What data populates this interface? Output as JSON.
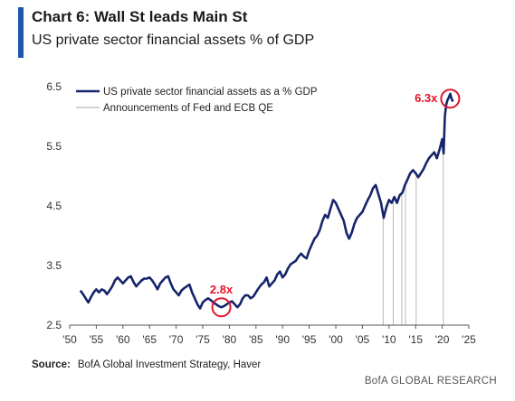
{
  "header": {
    "title": "Chart 6: Wall St leads Main St",
    "subtitle": "US private sector financial assets % of GDP"
  },
  "footer": {
    "source_label": "Source:",
    "source_text": "BofA Global Investment Strategy, Haver",
    "brand": "BofA GLOBAL RESEARCH"
  },
  "colors": {
    "accent": "#1f57a6",
    "series": "#16256b",
    "qe_lines": "#b9b9b9",
    "annotation": "#e3152c",
    "axis": "#555555"
  },
  "chart_data": {
    "type": "line",
    "title": "",
    "xlabel": "",
    "ylabel": "",
    "xlim": [
      1950,
      2025
    ],
    "ylim": [
      2.5,
      6.5
    ],
    "x_ticks": [
      1950,
      1955,
      1960,
      1965,
      1970,
      1975,
      1980,
      1985,
      1990,
      1995,
      2000,
      2005,
      2010,
      2015,
      2020,
      2025
    ],
    "x_tick_labels": [
      "'50",
      "'55",
      "'60",
      "'65",
      "'70",
      "'75",
      "'80",
      "'85",
      "'90",
      "'95",
      "'00",
      "'05",
      "'10",
      "'15",
      "'20",
      "'25"
    ],
    "y_ticks": [
      2.5,
      3.5,
      4.5,
      5.5,
      6.5
    ],
    "y_tick_labels": [
      "2.5",
      "3.5",
      "4.5",
      "5.5",
      "6.5"
    ],
    "grid": false,
    "legend_position": "top-left",
    "legend": [
      {
        "label": "US private sector financial assets as a % GDP",
        "style": "series"
      },
      {
        "label": "Announcements of Fed and ECB QE",
        "style": "qe"
      }
    ],
    "series": [
      {
        "name": "US private sector financial assets as a % GDP",
        "points": [
          [
            1952.0,
            3.08
          ],
          [
            1952.5,
            3.02
          ],
          [
            1953.0,
            2.95
          ],
          [
            1953.5,
            2.88
          ],
          [
            1954.0,
            2.97
          ],
          [
            1954.5,
            3.05
          ],
          [
            1955.0,
            3.1
          ],
          [
            1955.5,
            3.05
          ],
          [
            1956.0,
            3.1
          ],
          [
            1956.5,
            3.08
          ],
          [
            1957.0,
            3.02
          ],
          [
            1957.5,
            3.08
          ],
          [
            1958.0,
            3.15
          ],
          [
            1958.5,
            3.25
          ],
          [
            1959.0,
            3.3
          ],
          [
            1959.5,
            3.25
          ],
          [
            1960.0,
            3.2
          ],
          [
            1960.5,
            3.25
          ],
          [
            1961.0,
            3.3
          ],
          [
            1961.5,
            3.32
          ],
          [
            1962.0,
            3.22
          ],
          [
            1962.5,
            3.15
          ],
          [
            1963.0,
            3.2
          ],
          [
            1963.5,
            3.25
          ],
          [
            1964.0,
            3.28
          ],
          [
            1964.5,
            3.28
          ],
          [
            1965.0,
            3.3
          ],
          [
            1965.5,
            3.25
          ],
          [
            1966.0,
            3.18
          ],
          [
            1966.5,
            3.1
          ],
          [
            1967.0,
            3.2
          ],
          [
            1967.5,
            3.25
          ],
          [
            1968.0,
            3.3
          ],
          [
            1968.5,
            3.32
          ],
          [
            1969.0,
            3.2
          ],
          [
            1969.5,
            3.1
          ],
          [
            1970.0,
            3.05
          ],
          [
            1970.5,
            3.0
          ],
          [
            1971.0,
            3.08
          ],
          [
            1971.5,
            3.12
          ],
          [
            1972.0,
            3.15
          ],
          [
            1972.5,
            3.18
          ],
          [
            1973.0,
            3.05
          ],
          [
            1973.5,
            2.95
          ],
          [
            1974.0,
            2.85
          ],
          [
            1974.5,
            2.78
          ],
          [
            1975.0,
            2.88
          ],
          [
            1975.5,
            2.92
          ],
          [
            1976.0,
            2.95
          ],
          [
            1976.5,
            2.92
          ],
          [
            1977.0,
            2.88
          ],
          [
            1977.5,
            2.85
          ],
          [
            1978.0,
            2.82
          ],
          [
            1978.5,
            2.8
          ],
          [
            1979.0,
            2.82
          ],
          [
            1979.5,
            2.85
          ],
          [
            1980.0,
            2.88
          ],
          [
            1980.5,
            2.9
          ],
          [
            1981.0,
            2.85
          ],
          [
            1981.5,
            2.8
          ],
          [
            1982.0,
            2.85
          ],
          [
            1982.5,
            2.95
          ],
          [
            1983.0,
            3.0
          ],
          [
            1983.5,
            3.0
          ],
          [
            1984.0,
            2.95
          ],
          [
            1984.5,
            2.98
          ],
          [
            1985.0,
            3.05
          ],
          [
            1985.5,
            3.12
          ],
          [
            1986.0,
            3.18
          ],
          [
            1986.5,
            3.22
          ],
          [
            1987.0,
            3.3
          ],
          [
            1987.5,
            3.15
          ],
          [
            1988.0,
            3.2
          ],
          [
            1988.5,
            3.25
          ],
          [
            1989.0,
            3.35
          ],
          [
            1989.5,
            3.4
          ],
          [
            1990.0,
            3.3
          ],
          [
            1990.5,
            3.35
          ],
          [
            1991.0,
            3.45
          ],
          [
            1991.5,
            3.52
          ],
          [
            1992.0,
            3.55
          ],
          [
            1992.5,
            3.58
          ],
          [
            1993.0,
            3.65
          ],
          [
            1993.5,
            3.7
          ],
          [
            1994.0,
            3.65
          ],
          [
            1994.5,
            3.62
          ],
          [
            1995.0,
            3.75
          ],
          [
            1995.5,
            3.85
          ],
          [
            1996.0,
            3.95
          ],
          [
            1996.5,
            4.0
          ],
          [
            1997.0,
            4.1
          ],
          [
            1997.5,
            4.25
          ],
          [
            1998.0,
            4.35
          ],
          [
            1998.5,
            4.3
          ],
          [
            1999.0,
            4.45
          ],
          [
            1999.5,
            4.6
          ],
          [
            2000.0,
            4.55
          ],
          [
            2000.5,
            4.45
          ],
          [
            2001.0,
            4.35
          ],
          [
            2001.5,
            4.25
          ],
          [
            2002.0,
            4.05
          ],
          [
            2002.5,
            3.95
          ],
          [
            2003.0,
            4.05
          ],
          [
            2003.5,
            4.2
          ],
          [
            2004.0,
            4.3
          ],
          [
            2004.5,
            4.35
          ],
          [
            2005.0,
            4.4
          ],
          [
            2005.5,
            4.5
          ],
          [
            2006.0,
            4.6
          ],
          [
            2006.5,
            4.68
          ],
          [
            2007.0,
            4.8
          ],
          [
            2007.5,
            4.85
          ],
          [
            2008.0,
            4.7
          ],
          [
            2008.5,
            4.55
          ],
          [
            2009.0,
            4.3
          ],
          [
            2009.5,
            4.48
          ],
          [
            2010.0,
            4.6
          ],
          [
            2010.5,
            4.55
          ],
          [
            2011.0,
            4.65
          ],
          [
            2011.5,
            4.55
          ],
          [
            2012.0,
            4.68
          ],
          [
            2012.5,
            4.72
          ],
          [
            2013.0,
            4.85
          ],
          [
            2013.5,
            4.95
          ],
          [
            2014.0,
            5.05
          ],
          [
            2014.5,
            5.1
          ],
          [
            2015.0,
            5.05
          ],
          [
            2015.5,
            4.98
          ],
          [
            2016.0,
            5.05
          ],
          [
            2016.5,
            5.12
          ],
          [
            2017.0,
            5.22
          ],
          [
            2017.5,
            5.3
          ],
          [
            2018.0,
            5.35
          ],
          [
            2018.5,
            5.4
          ],
          [
            2019.0,
            5.3
          ],
          [
            2019.5,
            5.45
          ],
          [
            2020.0,
            5.62
          ],
          [
            2020.25,
            5.38
          ],
          [
            2020.5,
            6.0
          ],
          [
            2020.75,
            6.2
          ],
          [
            2021.0,
            6.28
          ],
          [
            2021.25,
            6.32
          ],
          [
            2021.5,
            6.38
          ],
          [
            2021.75,
            6.3
          ],
          [
            2022.0,
            6.25
          ]
        ]
      }
    ],
    "qe_announcements": [
      2008.9,
      2010.8,
      2012.4,
      2013.1,
      2015.1,
      2020.2
    ],
    "annotations": [
      {
        "label": "2.8x",
        "x": 1978.5,
        "y": 2.8,
        "label_side": "above"
      },
      {
        "label": "6.3x",
        "x": 2021.5,
        "y": 6.3,
        "label_side": "left"
      }
    ]
  }
}
